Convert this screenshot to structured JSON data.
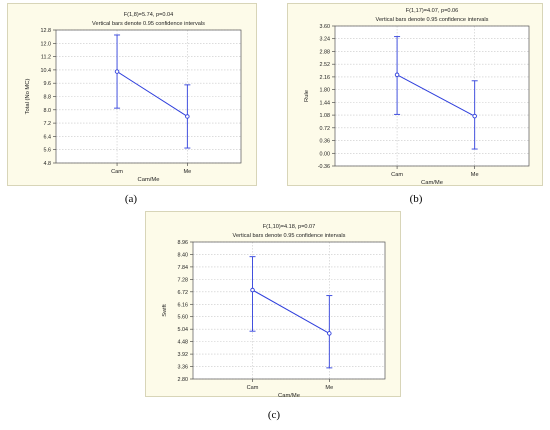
{
  "chart_data": [
    {
      "type": "line",
      "caption": "(a)",
      "title": "F(1,8)=5.74, p=0.04",
      "subtitle": "Vertical bars denote 0.95 confidence intervals",
      "xlabel": "Cam/Me",
      "ylabel": "Total (No MC)",
      "categories": [
        "Cam",
        "Me"
      ],
      "values": [
        10.3,
        7.6
      ],
      "ci_low": [
        8.1,
        5.7
      ],
      "ci_high": [
        12.5,
        9.5
      ],
      "ylim": [
        4.8,
        12.8
      ],
      "yticks": [
        "4.8",
        "5.6",
        "6.4",
        "7.2",
        "8.0",
        "8.8",
        "9.6",
        "10.4",
        "11.2",
        "12.0",
        "12.8"
      ],
      "grid": true,
      "line_color": "#2f3fdc"
    },
    {
      "type": "line",
      "caption": "(b)",
      "title": "F(1,17)=4.07, p=0.06",
      "subtitle": "Vertical bars denote 0.95 confidence intervals",
      "xlabel": "Cam/Me",
      "ylabel": "Rule",
      "categories": [
        "Cam",
        "Me"
      ],
      "values": [
        2.22,
        1.05
      ],
      "ci_low": [
        1.1,
        0.12
      ],
      "ci_high": [
        3.3,
        2.05
      ],
      "ylim": [
        -0.36,
        3.6
      ],
      "yticks": [
        "-0.36",
        "0.00",
        "0.36",
        "0.72",
        "1.08",
        "1.44",
        "1.80",
        "2.16",
        "2.52",
        "2.88",
        "3.24",
        "3.60"
      ],
      "grid": true,
      "line_color": "#2f3fdc"
    },
    {
      "type": "line",
      "caption": "(c)",
      "title": "F(1,10)=4.18, p=0.07",
      "subtitle": "Vertical bars denote 0.95 confidence intervals",
      "xlabel": "Cam/Me",
      "ylabel": "Swift",
      "categories": [
        "Cam",
        "Me"
      ],
      "values": [
        6.8,
        4.85
      ],
      "ci_low": [
        4.95,
        3.3
      ],
      "ci_high": [
        8.3,
        6.55
      ],
      "ylim": [
        2.8,
        8.96
      ],
      "yticks": [
        "2.80",
        "3.36",
        "3.92",
        "4.48",
        "5.04",
        "5.60",
        "6.16",
        "6.72",
        "7.28",
        "7.84",
        "8.40",
        "8.96"
      ],
      "grid": true,
      "line_color": "#2f3fdc"
    }
  ]
}
